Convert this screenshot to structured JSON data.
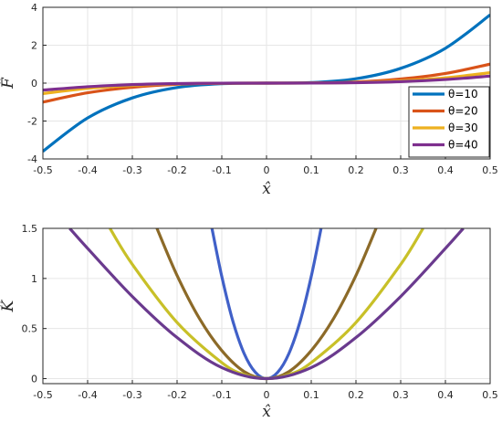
{
  "chart_data": [
    {
      "type": "line",
      "xlabel": "x̂",
      "ylabel": "F̂",
      "xlim": [
        -0.5,
        0.5
      ],
      "ylim": [
        -4,
        4
      ],
      "xticks": [
        "-0.5",
        "-0.4",
        "-0.3",
        "-0.2",
        "-0.1",
        "0",
        "0.1",
        "0.2",
        "0.3",
        "0.4",
        "0.5"
      ],
      "yticks": [
        "-4",
        "-2",
        "0",
        "2",
        "4"
      ],
      "grid": true,
      "legend": "bottom-right",
      "x": [
        -0.5,
        -0.4,
        -0.3,
        -0.2,
        -0.1,
        0,
        0.1,
        0.2,
        0.3,
        0.4,
        0.5
      ],
      "series": [
        {
          "name": "θ=10",
          "color": "#0072BD",
          "values": [
            -3.6,
            -1.84,
            -0.78,
            -0.23,
            -0.03,
            0,
            0.03,
            0.23,
            0.78,
            1.84,
            3.6
          ]
        },
        {
          "name": "θ=20",
          "color": "#D95319",
          "values": [
            -1.0,
            -0.51,
            -0.22,
            -0.06,
            -0.01,
            0,
            0.01,
            0.06,
            0.22,
            0.51,
            1.0
          ]
        },
        {
          "name": "θ=30",
          "color": "#EDB120",
          "values": [
            -0.55,
            -0.28,
            -0.12,
            -0.035,
            -0.004,
            0,
            0.004,
            0.035,
            0.12,
            0.28,
            0.55
          ]
        },
        {
          "name": "θ=40",
          "color": "#7E2F8E",
          "values": [
            -0.37,
            -0.19,
            -0.08,
            -0.024,
            -0.003,
            0,
            0.003,
            0.024,
            0.08,
            0.19,
            0.37
          ]
        }
      ]
    },
    {
      "type": "line",
      "xlabel": "x̂",
      "ylabel": "K̂",
      "xlim": [
        -0.5,
        0.5
      ],
      "ylim": [
        -0.05,
        1.5
      ],
      "xticks": [
        "-0.5",
        "-0.4",
        "-0.3",
        "-0.2",
        "-0.1",
        "0",
        "0.1",
        "0.2",
        "0.3",
        "0.4",
        "0.5"
      ],
      "yticks": [
        "0",
        "0.5",
        "1",
        "1.5"
      ],
      "grid": true,
      "series": [
        {
          "color": "#4060C8",
          "x": [
            -0.122,
            -0.1,
            -0.075,
            -0.05,
            -0.025,
            0,
            0.025,
            0.05,
            0.075,
            0.1,
            0.122
          ],
          "values": [
            1.5,
            1.02,
            0.57,
            0.25,
            0.063,
            0,
            0.063,
            0.25,
            0.57,
            1.02,
            1.5
          ]
        },
        {
          "color": "#8C6A28",
          "x": [
            -0.245,
            -0.2,
            -0.15,
            -0.1,
            -0.05,
            0,
            0.05,
            0.1,
            0.15,
            0.2,
            0.245
          ],
          "values": [
            1.5,
            1.03,
            0.6,
            0.28,
            0.07,
            0,
            0.07,
            0.28,
            0.6,
            1.03,
            1.5
          ]
        },
        {
          "color": "#C8C028",
          "x": [
            -0.35,
            -0.3,
            -0.2,
            -0.1,
            -0.05,
            0,
            0.05,
            0.1,
            0.2,
            0.3,
            0.35
          ],
          "values": [
            1.5,
            1.14,
            0.56,
            0.16,
            0.04,
            0,
            0.04,
            0.16,
            0.56,
            1.14,
            1.5
          ]
        },
        {
          "color": "#6A3A8E",
          "x": [
            -0.44,
            -0.4,
            -0.3,
            -0.2,
            -0.1,
            0,
            0.1,
            0.2,
            0.3,
            0.4,
            0.44
          ],
          "values": [
            1.5,
            1.3,
            0.82,
            0.41,
            0.11,
            0,
            0.11,
            0.41,
            0.82,
            1.3,
            1.5
          ]
        }
      ]
    }
  ]
}
